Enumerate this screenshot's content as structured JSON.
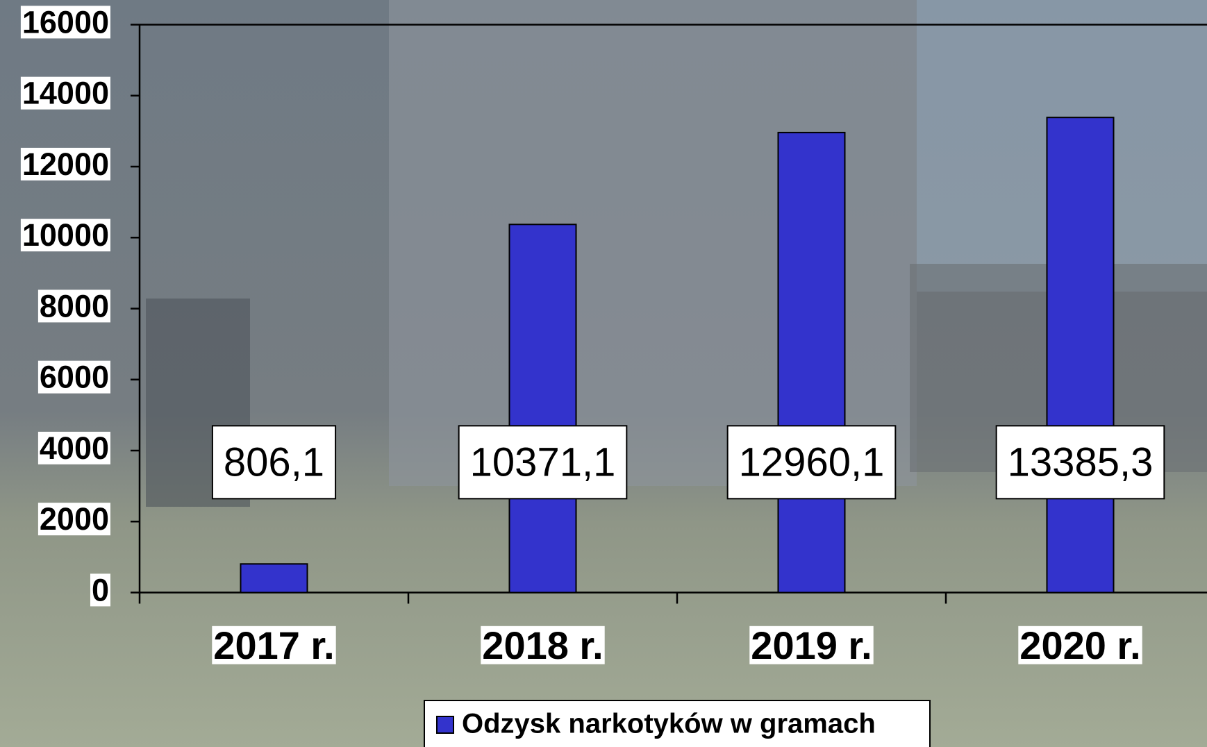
{
  "chart_data": {
    "type": "bar",
    "categories": [
      "2017 r.",
      "2018 r.",
      "2019 r.",
      "2020 r."
    ],
    "series": [
      {
        "name": "Odzysk narkotyków w gramach",
        "color": "#3333cc",
        "values": [
          806.1,
          10371.1,
          12960.1,
          13385.3
        ],
        "value_labels": [
          "806,1",
          "10371,1",
          "12960,1",
          "13385,3"
        ]
      }
    ],
    "ylim": [
      0,
      16000
    ],
    "yticks": [
      0,
      2000,
      4000,
      6000,
      8000,
      10000,
      12000,
      14000,
      16000
    ],
    "legend": "bottom"
  }
}
